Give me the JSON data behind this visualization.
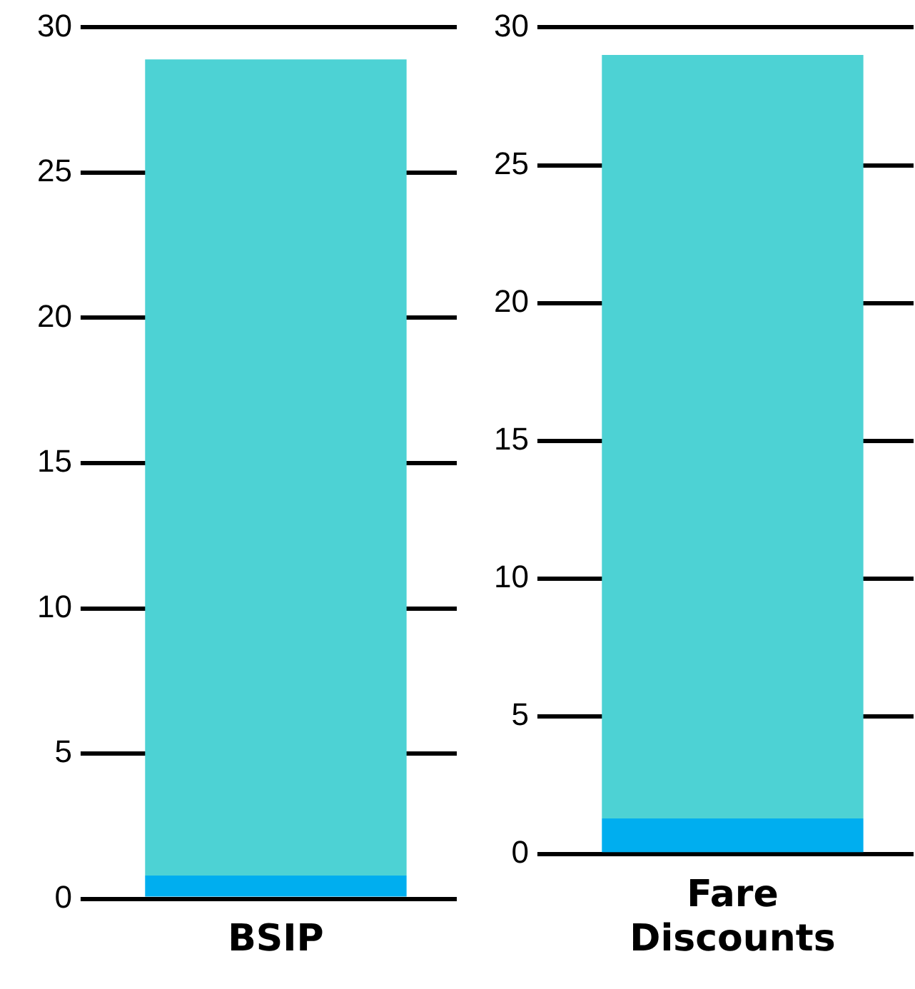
{
  "chart_data": [
    {
      "type": "bar",
      "stacked": true,
      "categories": [
        "BSIP"
      ],
      "series": [
        {
          "color": "#00aeef",
          "values": [
            0.8
          ]
        },
        {
          "color": "#4dd2d4",
          "values": [
            28.1
          ]
        }
      ],
      "ylim": [
        0,
        30
      ],
      "yticks": [
        0,
        5,
        10,
        15,
        20,
        25,
        30
      ],
      "grid": "y"
    },
    {
      "type": "bar",
      "stacked": true,
      "categories": [
        "Fare Discounts"
      ],
      "series": [
        {
          "color": "#00aeef",
          "values": [
            1.3
          ]
        },
        {
          "color": "#4dd2d4",
          "values": [
            27.7
          ]
        }
      ],
      "ylim": [
        0,
        30
      ],
      "yticks": [
        0,
        5,
        10,
        15,
        20,
        25,
        30
      ],
      "grid": "y"
    }
  ]
}
